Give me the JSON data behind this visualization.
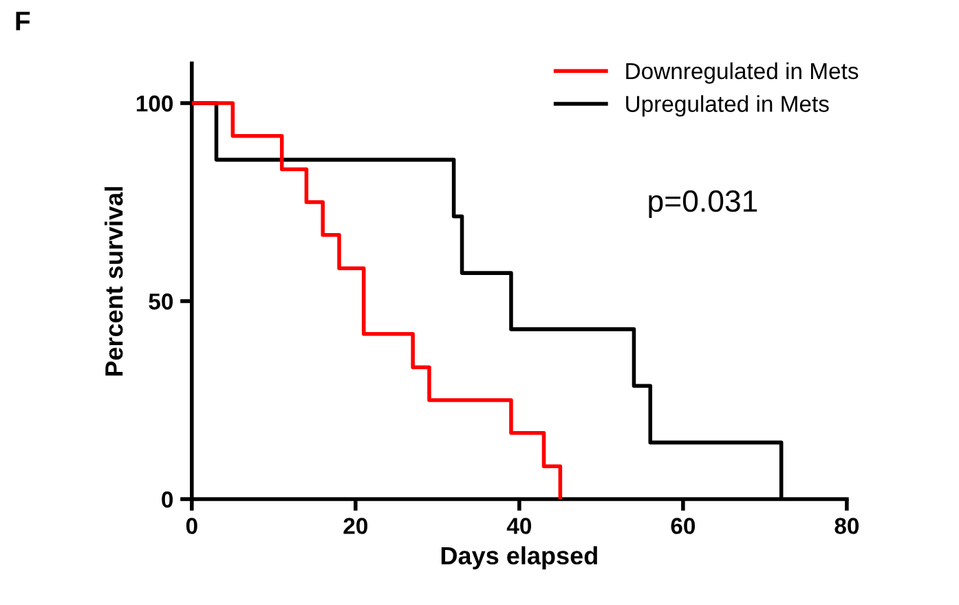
{
  "chart_data": {
    "type": "step",
    "title": "F",
    "xlabel": "Days elapsed",
    "ylabel": "Percent survival",
    "series": [
      {
        "name": "Downregulated in Mets",
        "color": "#ff0000",
        "x": [
          0,
          5,
          11,
          14,
          16,
          18,
          21,
          27,
          29,
          39,
          43,
          45
        ],
        "values": [
          100,
          91.7,
          83.3,
          75,
          66.7,
          58.3,
          41.7,
          33.3,
          25,
          16.7,
          8.3,
          0
        ]
      },
      {
        "name": "Upregulated in Mets",
        "color": "#000000",
        "x": [
          0,
          3,
          32,
          33,
          39,
          54,
          56,
          72
        ],
        "values": [
          100,
          85.7,
          71.4,
          57.1,
          42.9,
          28.6,
          14.3,
          0
        ]
      }
    ],
    "xlim": [
      0,
      80
    ],
    "xticks": [
      0,
      20,
      40,
      60,
      80
    ],
    "ylim": [
      0,
      110
    ],
    "yticks": [
      0,
      50,
      100
    ],
    "annotations": [
      "p=0.031"
    ],
    "legend": "top right",
    "grid": false
  }
}
